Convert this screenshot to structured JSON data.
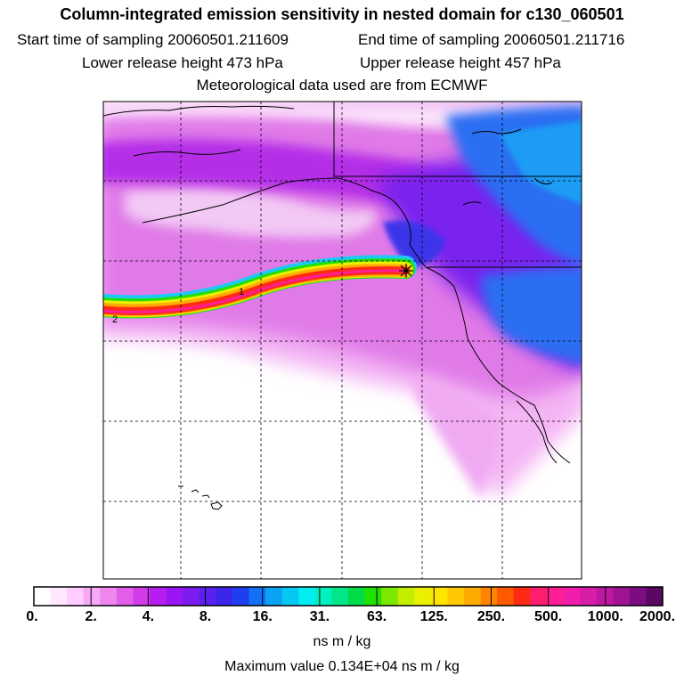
{
  "header": {
    "title": "Column-integrated emission sensitivity in nested domain for c130_060501",
    "start_time": "Start time of sampling 20060501.211609",
    "end_time": "End time of sampling 20060501.211716",
    "lower_release": "Lower release height  473 hPa",
    "upper_release": "Upper release height  457 hPa",
    "met_data": "Meteorological data used are from ECMWF"
  },
  "map": {
    "plume_labels": [
      "1",
      "2"
    ],
    "release_marker": "release-point-star-icon"
  },
  "legend": {
    "ticks": [
      "0.",
      "2.",
      "4.",
      "8.",
      "16.",
      "31.",
      "63.",
      "125.",
      "250.",
      "500.",
      "1000.",
      "2000."
    ],
    "colors": [
      "#ffffff",
      "#ffe8ff",
      "#ffccff",
      "#f7a8f7",
      "#ef85ef",
      "#e35ee8",
      "#d23ce8",
      "#b61ef0",
      "#9a16f2",
      "#7c1cf0",
      "#5a20ee",
      "#3a26ea",
      "#1e3ef0",
      "#1470f4",
      "#0aa2f4",
      "#04c8f2",
      "#00eef0",
      "#00f0c0",
      "#00e688",
      "#00dc48",
      "#22e000",
      "#7ce800",
      "#c4ee00",
      "#eaf000",
      "#ffe400",
      "#ffc800",
      "#ffaa00",
      "#ff8400",
      "#ff5a00",
      "#ff2a14",
      "#ff1e6e",
      "#ff1e96",
      "#f01eaa",
      "#d81ea8",
      "#bc18a0",
      "#a01494",
      "#7c0c80",
      "#5a0862"
    ],
    "units": "ns m / kg",
    "max_value": "Maximum value  0.134E+04 ns m / kg"
  }
}
